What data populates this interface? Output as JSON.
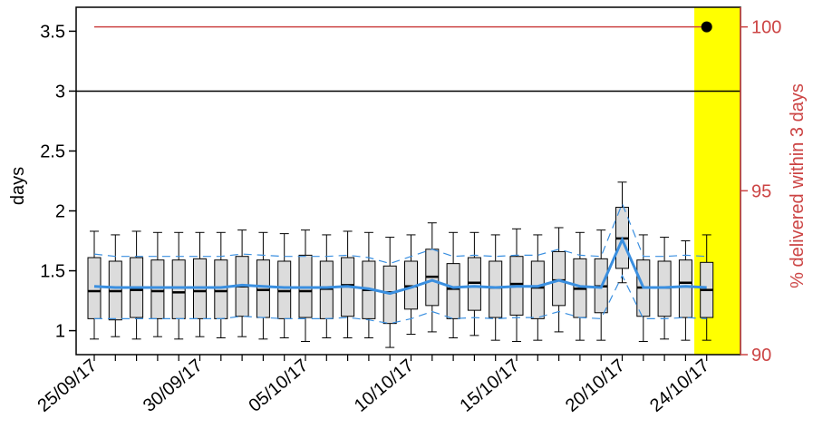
{
  "chart_data": {
    "type": "box",
    "xlabel": "",
    "ylabel": "days",
    "ylabel_right": "% delivered within 3 days",
    "ylim": [
      0.8,
      3.7
    ],
    "ylim_right": [
      90,
      100.6
    ],
    "yticks": [
      1,
      1.5,
      2,
      2.5,
      3,
      3.5
    ],
    "yticks_right": [
      90,
      95,
      100
    ],
    "x_tick_labels": [
      {
        "index": 0,
        "label": "25/09/17"
      },
      {
        "index": 5,
        "label": "30/09/17"
      },
      {
        "index": 10,
        "label": "05/10/17"
      },
      {
        "index": 15,
        "label": "10/10/17"
      },
      {
        "index": 20,
        "label": "15/10/17"
      },
      {
        "index": 25,
        "label": "20/10/17"
      },
      {
        "index": 29,
        "label": "24/10/17"
      }
    ],
    "threshold_days": 3,
    "target_percent": 100,
    "highlight_index": 29,
    "highlight_color": "#ffff00",
    "percent_point": {
      "index": 29,
      "value": 100
    },
    "colors": {
      "box_fill": "#dcdcdc",
      "mean_line": "#3a8fe0",
      "band_line": "#3a8fe0",
      "target_line": "#cc4444",
      "threshold_line": "#000000",
      "right_axis": "#cc4444"
    },
    "boxes": [
      {
        "q1": 1.1,
        "median": 1.33,
        "q3": 1.61,
        "whisker_low": 0.93,
        "whisker_high": 1.83
      },
      {
        "q1": 1.09,
        "median": 1.33,
        "q3": 1.58,
        "whisker_low": 0.95,
        "whisker_high": 1.8
      },
      {
        "q1": 1.11,
        "median": 1.34,
        "q3": 1.61,
        "whisker_low": 0.93,
        "whisker_high": 1.83
      },
      {
        "q1": 1.1,
        "median": 1.33,
        "q3": 1.59,
        "whisker_low": 0.95,
        "whisker_high": 1.82
      },
      {
        "q1": 1.1,
        "median": 1.32,
        "q3": 1.59,
        "whisker_low": 0.93,
        "whisker_high": 1.82
      },
      {
        "q1": 1.1,
        "median": 1.33,
        "q3": 1.6,
        "whisker_low": 0.95,
        "whisker_high": 1.82
      },
      {
        "q1": 1.1,
        "median": 1.33,
        "q3": 1.59,
        "whisker_low": 0.94,
        "whisker_high": 1.82
      },
      {
        "q1": 1.12,
        "median": 1.37,
        "q3": 1.62,
        "whisker_low": 0.95,
        "whisker_high": 1.84
      },
      {
        "q1": 1.11,
        "median": 1.34,
        "q3": 1.59,
        "whisker_low": 0.93,
        "whisker_high": 1.82
      },
      {
        "q1": 1.1,
        "median": 1.33,
        "q3": 1.58,
        "whisker_low": 0.94,
        "whisker_high": 1.81
      },
      {
        "q1": 1.11,
        "median": 1.33,
        "q3": 1.63,
        "whisker_low": 0.91,
        "whisker_high": 1.84
      },
      {
        "q1": 1.1,
        "median": 1.35,
        "q3": 1.58,
        "whisker_low": 0.94,
        "whisker_high": 1.8
      },
      {
        "q1": 1.12,
        "median": 1.38,
        "q3": 1.61,
        "whisker_low": 0.94,
        "whisker_high": 1.83
      },
      {
        "q1": 1.1,
        "median": 1.34,
        "q3": 1.58,
        "whisker_low": 0.94,
        "whisker_high": 1.82
      },
      {
        "q1": 1.06,
        "median": 1.32,
        "q3": 1.54,
        "whisker_low": 0.86,
        "whisker_high": 1.78
      },
      {
        "q1": 1.18,
        "median": 1.37,
        "q3": 1.58,
        "whisker_low": 0.97,
        "whisker_high": 1.8
      },
      {
        "q1": 1.21,
        "median": 1.45,
        "q3": 1.68,
        "whisker_low": 0.99,
        "whisker_high": 1.9
      },
      {
        "q1": 1.1,
        "median": 1.35,
        "q3": 1.56,
        "whisker_low": 0.94,
        "whisker_high": 1.82
      },
      {
        "q1": 1.17,
        "median": 1.4,
        "q3": 1.61,
        "whisker_low": 0.96,
        "whisker_high": 1.82
      },
      {
        "q1": 1.11,
        "median": 1.36,
        "q3": 1.58,
        "whisker_low": 0.92,
        "whisker_high": 1.8
      },
      {
        "q1": 1.13,
        "median": 1.39,
        "q3": 1.62,
        "whisker_low": 0.91,
        "whisker_high": 1.85
      },
      {
        "q1": 1.1,
        "median": 1.36,
        "q3": 1.58,
        "whisker_low": 0.92,
        "whisker_high": 1.8
      },
      {
        "q1": 1.21,
        "median": 1.42,
        "q3": 1.66,
        "whisker_low": 0.99,
        "whisker_high": 1.86
      },
      {
        "q1": 1.11,
        "median": 1.35,
        "q3": 1.6,
        "whisker_low": 0.92,
        "whisker_high": 1.82
      },
      {
        "q1": 1.15,
        "median": 1.37,
        "q3": 1.6,
        "whisker_low": 0.92,
        "whisker_high": 1.84
      },
      {
        "q1": 1.52,
        "median": 1.77,
        "q3": 2.03,
        "whisker_low": 1.4,
        "whisker_high": 2.24
      },
      {
        "q1": 1.12,
        "median": 1.36,
        "q3": 1.59,
        "whisker_low": 0.91,
        "whisker_high": 1.8
      },
      {
        "q1": 1.12,
        "median": 1.36,
        "q3": 1.58,
        "whisker_low": 0.93,
        "whisker_high": 1.78
      },
      {
        "q1": 1.11,
        "median": 1.4,
        "q3": 1.59,
        "whisker_low": 0.92,
        "whisker_high": 1.75
      },
      {
        "q1": 1.11,
        "median": 1.34,
        "q3": 1.57,
        "whisker_low": 0.92,
        "whisker_high": 1.8
      }
    ],
    "mean_line": [
      1.37,
      1.36,
      1.36,
      1.36,
      1.36,
      1.36,
      1.36,
      1.38,
      1.37,
      1.36,
      1.36,
      1.36,
      1.37,
      1.35,
      1.31,
      1.36,
      1.42,
      1.36,
      1.37,
      1.36,
      1.37,
      1.37,
      1.42,
      1.37,
      1.36,
      1.76,
      1.36,
      1.36,
      1.37,
      1.36
    ],
    "band_upper": [
      1.64,
      1.62,
      1.62,
      1.62,
      1.62,
      1.62,
      1.62,
      1.64,
      1.63,
      1.62,
      1.62,
      1.62,
      1.63,
      1.61,
      1.56,
      1.62,
      1.68,
      1.62,
      1.63,
      1.62,
      1.63,
      1.63,
      1.68,
      1.63,
      1.62,
      2.06,
      1.62,
      1.62,
      1.63,
      1.62
    ],
    "band_lower": [
      1.1,
      1.1,
      1.1,
      1.1,
      1.1,
      1.1,
      1.1,
      1.12,
      1.11,
      1.1,
      1.1,
      1.1,
      1.11,
      1.09,
      1.06,
      1.1,
      1.16,
      1.1,
      1.11,
      1.1,
      1.11,
      1.11,
      1.16,
      1.11,
      1.1,
      1.46,
      1.1,
      1.1,
      1.11,
      1.1
    ]
  }
}
